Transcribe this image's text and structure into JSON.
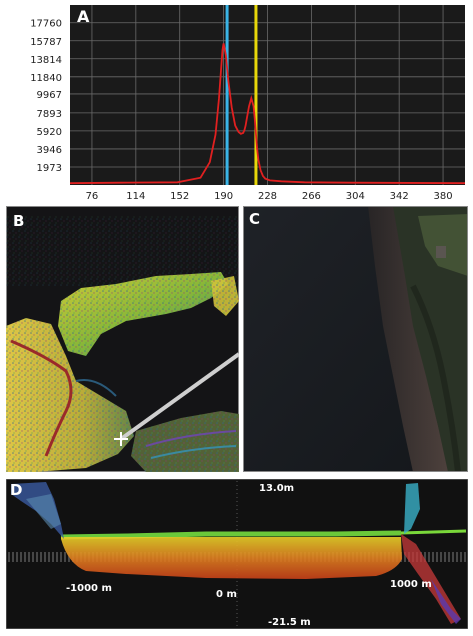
{
  "panels": {
    "a": {
      "label": "A"
    },
    "b": {
      "label": "B"
    },
    "c": {
      "label": "C"
    },
    "d": {
      "label": "D"
    }
  },
  "chart_data": {
    "type": "line",
    "title": "",
    "xlabel": "",
    "ylabel": "",
    "x_ticks": [
      "76",
      "114",
      "152",
      "190",
      "228",
      "266",
      "304",
      "342",
      "380"
    ],
    "y_ticks": [
      "17760",
      "15787",
      "13814",
      "11840",
      "9967",
      "7893",
      "5920",
      "3946",
      "1973"
    ],
    "xlim": [
      57,
      399
    ],
    "ylim": [
      0,
      19700
    ],
    "grid": true,
    "series": [
      {
        "color": "#e02020",
        "x": [
          57,
          100,
          150,
          170,
          178,
          183,
          186,
          188,
          189,
          190,
          192,
          194,
          197,
          200,
          203,
          205,
          207,
          208,
          209,
          210,
          212,
          214,
          216,
          217,
          218,
          219,
          220,
          222,
          224,
          226,
          230,
          240,
          260,
          300,
          399
        ],
        "y": [
          200,
          250,
          300,
          800,
          2500,
          5500,
          9500,
          13000,
          14800,
          15500,
          14200,
          11500,
          8500,
          6500,
          5800,
          5600,
          5700,
          6000,
          6500,
          7200,
          8600,
          9500,
          8600,
          7200,
          5500,
          4000,
          2800,
          1600,
          1000,
          700,
          500,
          400,
          300,
          250,
          200
        ]
      }
    ],
    "markers": [
      {
        "x": 193,
        "color": "#3ab4e6"
      },
      {
        "x": 218,
        "color": "#e8d80a"
      }
    ]
  },
  "profile": {
    "top_label": "13.0m",
    "bottom_label": "-21.5 m",
    "left_distance": "-1000 m",
    "center_distance": "0 m",
    "right_distance": "1000 m"
  },
  "colors": {
    "panel_bg": "#1b1b1b",
    "grid": "#6a6a6a",
    "transect": "#cfcfcf",
    "cursor": "#ffffff"
  }
}
